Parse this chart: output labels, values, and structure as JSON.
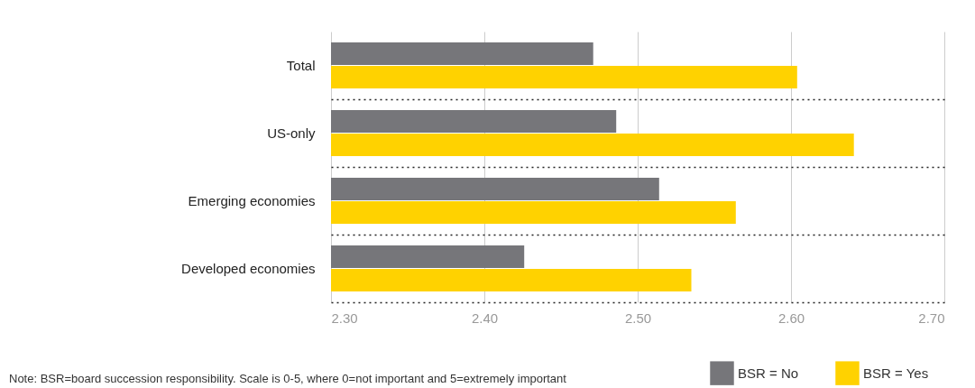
{
  "chart_data": {
    "type": "bar",
    "orientation": "horizontal",
    "categories": [
      "Total",
      "US-only",
      "Emerging economies",
      "Developed economies"
    ],
    "series": [
      {
        "name": "BSR = No",
        "color": "#76767a",
        "values": [
          2.471,
          2.486,
          2.514,
          2.426
        ]
      },
      {
        "name": "BSR = Yes",
        "color": "#ffd200",
        "values": [
          2.604,
          2.641,
          2.564,
          2.535
        ]
      }
    ],
    "xlim": [
      2.3,
      2.7
    ],
    "xticks": [
      {
        "value": 2.3,
        "label": "2.30"
      },
      {
        "value": 2.4,
        "label": "2.40"
      },
      {
        "value": 2.5,
        "label": "2.50"
      },
      {
        "value": 2.6,
        "label": "2.60"
      },
      {
        "value": 2.7,
        "label": "2.70"
      }
    ],
    "grid": true,
    "legend": "bottom right",
    "annotations": [
      "Note: BSR=board succession responsibility. Scale is 0-5, where 0=not important and 5=extremely important"
    ]
  }
}
